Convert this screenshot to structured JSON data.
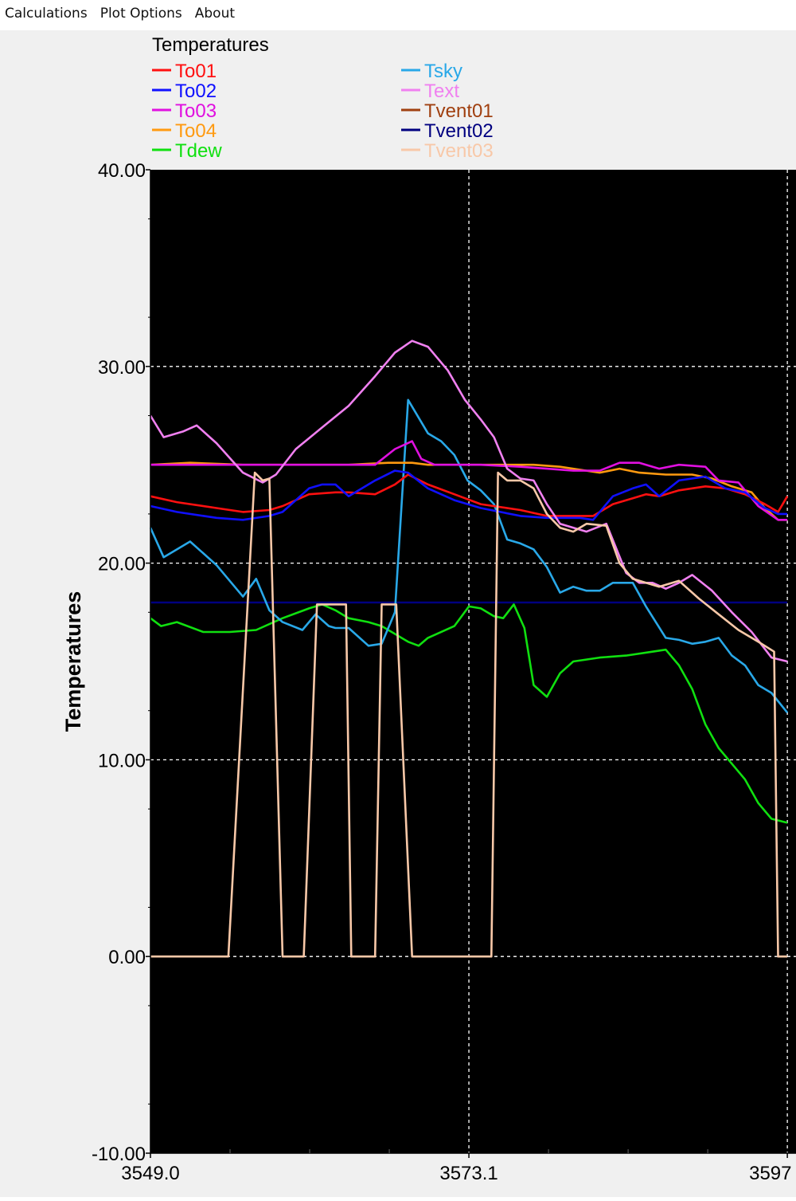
{
  "menu": [
    {
      "label": "Calculations"
    },
    {
      "label": "Plot Options"
    },
    {
      "label": "About"
    }
  ],
  "chart_data": {
    "type": "line",
    "title": "Temperatures",
    "ylabel": "Temperatures",
    "xlabel": "",
    "ylim": [
      -10,
      40
    ],
    "xlim": [
      3549.0,
      3597.2
    ],
    "y_ticks": [
      "40.00",
      "30.00",
      "20.00",
      "10.00",
      "0.00",
      "-10.00"
    ],
    "y_tick_values": [
      40,
      30,
      20,
      10,
      0,
      -10
    ],
    "x_ticks": [
      "3549.0",
      "3573.1",
      "3597"
    ],
    "x_tick_values": [
      3549.0,
      3573.1,
      3597.2
    ],
    "grid": true,
    "background": "#000000",
    "legend_position": "top",
    "series": [
      {
        "name": "To01",
        "color": "#ff1010",
        "x": [
          3549.0,
          3551.0,
          3554.0,
          3556.0,
          3558.0,
          3559.0,
          3561.0,
          3563.0,
          3564.0,
          3566.0,
          3567.5,
          3568.5,
          3570.0,
          3572.0,
          3574.0,
          3577.0,
          3579.0,
          3581.5,
          3582.5,
          3584.0,
          3585.5,
          3586.5,
          3587.5,
          3589.0,
          3591.0,
          3592.5,
          3594.0,
          3595.5,
          3596.5,
          3597.2
        ],
        "y": [
          23.4,
          23.1,
          22.8,
          22.6,
          22.7,
          22.9,
          23.5,
          23.6,
          23.6,
          23.5,
          24.0,
          24.5,
          24.0,
          23.5,
          23.0,
          22.7,
          22.4,
          22.4,
          22.4,
          23.0,
          23.3,
          23.5,
          23.4,
          23.7,
          23.9,
          23.8,
          23.5,
          23.0,
          22.6,
          23.4
        ]
      },
      {
        "name": "To02",
        "color": "#1010ff",
        "x": [
          3549.0,
          3551.0,
          3554.0,
          3556.0,
          3558.0,
          3559.0,
          3561.0,
          3562.0,
          3563.0,
          3564.0,
          3566.0,
          3567.5,
          3568.5,
          3570.0,
          3572.0,
          3574.0,
          3577.0,
          3579.0,
          3581.5,
          3582.5,
          3584.0,
          3585.5,
          3586.5,
          3587.5,
          3589.0,
          3591.0,
          3592.5,
          3594.0,
          3595.5,
          3596.5,
          3597.2
        ],
        "y": [
          22.9,
          22.6,
          22.3,
          22.2,
          22.4,
          22.6,
          23.8,
          24.0,
          24.0,
          23.4,
          24.2,
          24.7,
          24.6,
          23.8,
          23.2,
          22.8,
          22.4,
          22.3,
          22.3,
          22.2,
          23.4,
          23.8,
          24.0,
          23.4,
          24.2,
          24.4,
          23.8,
          23.6,
          22.8,
          22.5,
          22.5
        ]
      },
      {
        "name": "To03",
        "color": "#e010e0",
        "x": [
          3549.0,
          3552.0,
          3556.0,
          3560.0,
          3564.0,
          3566.0,
          3567.5,
          3568.8,
          3569.5,
          3570.5,
          3574.0,
          3577.0,
          3579.0,
          3581.0,
          3583.0,
          3584.5,
          3586.0,
          3587.5,
          3589.0,
          3591.0,
          3592.0,
          3593.5,
          3595.0,
          3596.5,
          3597.2
        ],
        "y": [
          25.0,
          25.0,
          25.0,
          25.0,
          25.0,
          25.0,
          25.8,
          26.2,
          25.3,
          25.0,
          25.0,
          24.9,
          24.8,
          24.7,
          24.7,
          25.1,
          25.1,
          24.8,
          25.0,
          24.9,
          24.2,
          24.1,
          22.9,
          22.2,
          22.2
        ]
      },
      {
        "name": "To04",
        "color": "#ff9a10",
        "x": [
          3549.0,
          3552.0,
          3556.0,
          3560.0,
          3564.0,
          3567.0,
          3568.8,
          3570.0,
          3574.0,
          3578.0,
          3580.0,
          3583.0,
          3584.5,
          3586.0,
          3588.0,
          3590.0,
          3591.5,
          3593.0,
          3594.5,
          3595.5,
          3596.5,
          3597.2
        ],
        "y": [
          25.0,
          25.1,
          25.0,
          25.0,
          25.0,
          25.1,
          25.1,
          25.0,
          25.0,
          25.0,
          24.9,
          24.6,
          24.8,
          24.6,
          24.5,
          24.5,
          24.3,
          23.9,
          23.6,
          22.8,
          22.2,
          22.2
        ]
      },
      {
        "name": "Tdew",
        "color": "#10e010",
        "x": [
          3549.0,
          3549.8,
          3551.0,
          3553.0,
          3555.0,
          3557.0,
          3559.0,
          3561.0,
          3562.0,
          3563.0,
          3564.0,
          3565.5,
          3566.5,
          3567.5,
          3568.5,
          3569.3,
          3570.0,
          3572.0,
          3573.1,
          3574.0,
          3575.0,
          3575.7,
          3576.5,
          3577.3,
          3578.0,
          3579.0,
          3580.0,
          3581.0,
          3583.0,
          3585.0,
          3587.0,
          3588.0,
          3589.0,
          3590.0,
          3591.0,
          3592.0,
          3593.0,
          3594.0,
          3595.0,
          3596.0,
          3597.2
        ],
        "y": [
          17.2,
          16.8,
          17.0,
          16.5,
          16.5,
          16.6,
          17.2,
          17.7,
          17.9,
          17.6,
          17.2,
          17.0,
          16.8,
          16.4,
          16.0,
          15.8,
          16.2,
          16.8,
          17.8,
          17.7,
          17.3,
          17.2,
          17.9,
          16.7,
          13.8,
          13.2,
          14.4,
          15.0,
          15.2,
          15.3,
          15.5,
          15.6,
          14.8,
          13.6,
          11.8,
          10.6,
          9.8,
          9.0,
          7.8,
          7.0,
          6.8
        ]
      },
      {
        "name": "Tsky",
        "color": "#29a8e8",
        "x": [
          3549.0,
          3550.0,
          3552.0,
          3554.0,
          3556.0,
          3557.0,
          3558.0,
          3559.0,
          3560.5,
          3561.5,
          3562.5,
          3563.0,
          3564.0,
          3565.5,
          3566.5,
          3567.5,
          3568.5,
          3570.0,
          3571.0,
          3572.0,
          3573.0,
          3574.0,
          3575.0,
          3576.0,
          3577.0,
          3578.0,
          3579.0,
          3580.0,
          3581.0,
          3582.0,
          3583.0,
          3584.0,
          3585.5,
          3586.5,
          3588.0,
          3589.0,
          3590.0,
          3591.0,
          3592.0,
          3593.0,
          3594.0,
          3595.0,
          3596.0,
          3597.2
        ],
        "y": [
          21.8,
          20.3,
          21.1,
          19.9,
          18.3,
          19.2,
          17.6,
          17.0,
          16.6,
          17.4,
          16.8,
          16.7,
          16.7,
          15.8,
          15.9,
          17.5,
          28.3,
          26.6,
          26.2,
          25.5,
          24.2,
          23.7,
          23.0,
          21.2,
          21.0,
          20.7,
          19.8,
          18.5,
          18.8,
          18.6,
          18.6,
          19.0,
          19.0,
          17.8,
          16.2,
          16.1,
          15.9,
          16.0,
          16.2,
          15.3,
          14.8,
          13.8,
          13.4,
          12.4
        ]
      },
      {
        "name": "Text",
        "color": "#f080f0",
        "x": [
          3549.0,
          3550.0,
          3551.5,
          3552.5,
          3554.0,
          3556.0,
          3557.5,
          3558.5,
          3560.0,
          3562.0,
          3564.0,
          3566.0,
          3567.5,
          3568.8,
          3570.0,
          3571.5,
          3572.8,
          3574.0,
          3575.0,
          3576.0,
          3577.0,
          3578.0,
          3579.0,
          3580.0,
          3582.0,
          3583.5,
          3585.0,
          3586.0,
          3587.0,
          3588.0,
          3589.0,
          3590.0,
          3591.5,
          3593.0,
          3594.5,
          3596.0,
          3597.2
        ],
        "y": [
          27.5,
          26.4,
          26.7,
          27.0,
          26.1,
          24.6,
          24.1,
          24.5,
          25.8,
          26.9,
          28.0,
          29.5,
          30.7,
          31.3,
          31.0,
          29.8,
          28.3,
          27.3,
          26.4,
          24.8,
          24.3,
          24.2,
          23.0,
          22.0,
          21.6,
          22.0,
          19.5,
          19.0,
          19.0,
          18.7,
          19.0,
          19.4,
          18.6,
          17.5,
          16.5,
          15.2,
          15.0
        ]
      },
      {
        "name": "Tvent01",
        "color": "#a04010",
        "x": [],
        "y": []
      },
      {
        "name": "Tvent02",
        "color": "#000080",
        "x": [
          3549.0,
          3597.2
        ],
        "y": [
          18.0,
          18.0
        ]
      },
      {
        "name": "Tvent03",
        "color": "#f8c8a8",
        "x": [
          3549.0,
          3554.9,
          3556.9,
          3557.5,
          3558.0,
          3559.0,
          3560.0,
          3560.6,
          3561.6,
          3562.4,
          3563.8,
          3564.2,
          3565.2,
          3566.0,
          3566.5,
          3567.6,
          3568.8,
          3569.0,
          3574.8,
          3575.3,
          3576.0,
          3577.0,
          3578.0,
          3579.0,
          3580.0,
          3581.0,
          3582.0,
          3583.5,
          3584.5,
          3585.5,
          3586.5,
          3587.5,
          3589.0,
          3590.5,
          3592.0,
          3593.5,
          3595.0,
          3596.2,
          3596.5,
          3597.0,
          3597.2
        ],
        "y": [
          0.0,
          0.0,
          24.6,
          24.2,
          24.3,
          0.0,
          0.0,
          0.0,
          17.9,
          17.9,
          17.9,
          0.0,
          0.0,
          0.0,
          17.9,
          17.9,
          0.0,
          0.0,
          0.0,
          24.6,
          24.2,
          24.2,
          23.8,
          22.5,
          21.8,
          21.6,
          22.0,
          21.9,
          20.0,
          19.2,
          19.0,
          18.8,
          19.1,
          18.2,
          17.4,
          16.6,
          16.0,
          15.5,
          0.0,
          0.0,
          0.0
        ]
      }
    ]
  }
}
